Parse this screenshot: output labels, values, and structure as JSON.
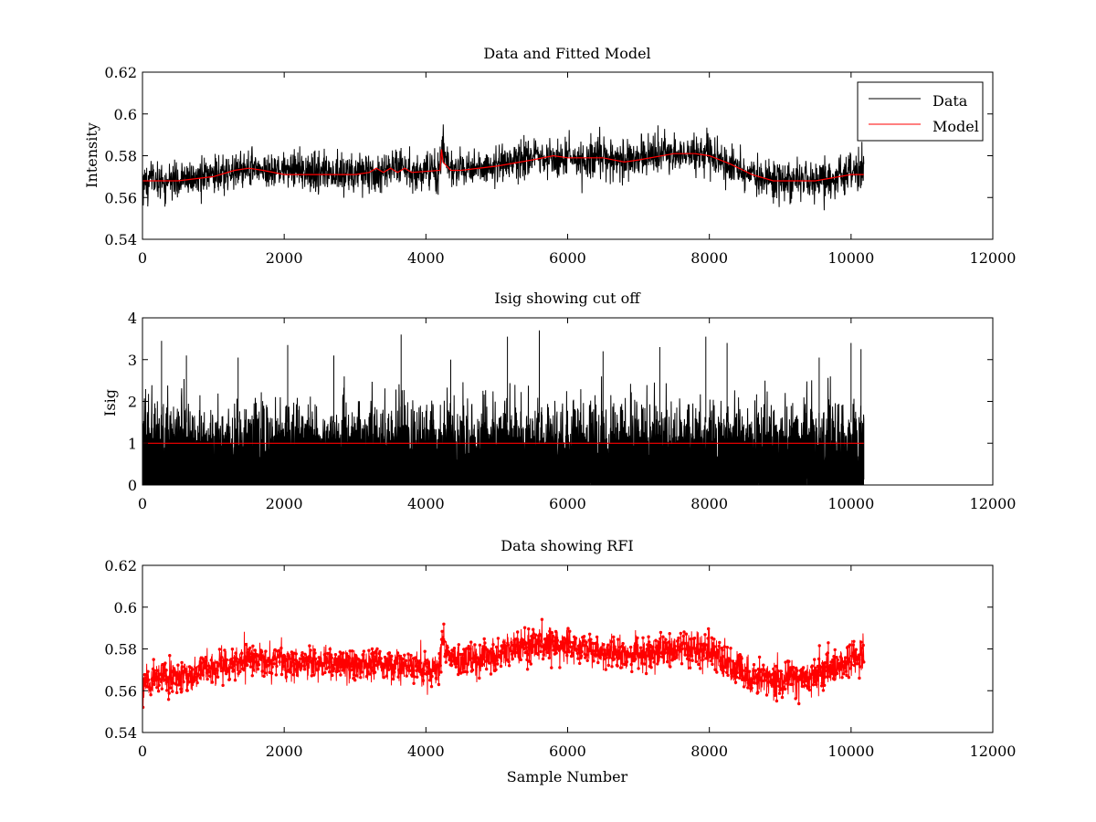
{
  "chart_data": [
    {
      "type": "line",
      "title": "Data and Fitted Model",
      "xlabel": "",
      "ylabel": "Intensity",
      "xlim": [
        0,
        12000
      ],
      "ylim": [
        0.54,
        0.62
      ],
      "xticks": [
        0,
        2000,
        4000,
        6000,
        8000,
        10000,
        12000
      ],
      "yticks": [
        0.54,
        0.56,
        0.58,
        0.6,
        0.62
      ],
      "xtick_labels": [
        "0",
        "2000",
        "4000",
        "6000",
        "8000",
        "10000",
        "12000"
      ],
      "ytick_labels": [
        "0.54",
        "0.56",
        "0.58",
        "0.6",
        "0.62"
      ],
      "legend": {
        "position": "top-right",
        "entries": [
          "Data",
          "Model"
        ]
      },
      "series": [
        {
          "name": "Data",
          "color": "#000000",
          "style": "noisy-line",
          "x": [
            0,
            500,
            1000,
            1500,
            2000,
            2500,
            3000,
            3500,
            3900,
            4200,
            4230,
            4300,
            4500,
            5000,
            5500,
            6000,
            6500,
            7000,
            7500,
            8000,
            8500,
            9000,
            9500,
            10000,
            10180
          ],
          "baseline": [
            0.568,
            0.568,
            0.57,
            0.574,
            0.573,
            0.572,
            0.572,
            0.573,
            0.572,
            0.573,
            0.586,
            0.575,
            0.573,
            0.575,
            0.58,
            0.579,
            0.579,
            0.578,
            0.582,
            0.581,
            0.571,
            0.568,
            0.568,
            0.571,
            0.572
          ],
          "noise_sd": 0.0045
        },
        {
          "name": "Model",
          "color": "#ff0000",
          "x": [
            0,
            500,
            1000,
            1300,
            1500,
            1700,
            2000,
            2500,
            3000,
            3200,
            3300,
            3400,
            3500,
            3600,
            3700,
            3800,
            4200,
            4220,
            4240,
            4350,
            4500,
            5000,
            5500,
            5800,
            6000,
            6500,
            6800,
            7000,
            7500,
            7800,
            8000,
            8300,
            8600,
            8900,
            9500,
            10000,
            10180
          ],
          "y": [
            0.568,
            0.568,
            0.57,
            0.573,
            0.574,
            0.573,
            0.571,
            0.571,
            0.571,
            0.572,
            0.574,
            0.572,
            0.574,
            0.572,
            0.574,
            0.572,
            0.573,
            0.583,
            0.577,
            0.573,
            0.573,
            0.575,
            0.578,
            0.58,
            0.579,
            0.579,
            0.577,
            0.578,
            0.581,
            0.581,
            0.58,
            0.576,
            0.571,
            0.568,
            0.568,
            0.571,
            0.571
          ]
        }
      ]
    },
    {
      "type": "line",
      "title": "Isig showing cut off",
      "xlabel": "",
      "ylabel": "Isig",
      "xlim": [
        0,
        12000
      ],
      "ylim": [
        0,
        4
      ],
      "xticks": [
        0,
        2000,
        4000,
        6000,
        8000,
        10000,
        12000
      ],
      "yticks": [
        0,
        1,
        2,
        3,
        4
      ],
      "xtick_labels": [
        "0",
        "2000",
        "4000",
        "6000",
        "8000",
        "10000",
        "12000"
      ],
      "ytick_labels": [
        "0",
        "1",
        "2",
        "3",
        "4"
      ],
      "series": [
        {
          "name": "Isig",
          "color": "#000000",
          "style": "noisy-spikes",
          "x_range": [
            0,
            10180
          ],
          "band_low": 0,
          "band_high": 1.6,
          "peaks": [
            {
              "x": 270,
              "y": 3.45
            },
            {
              "x": 620,
              "y": 3.1
            },
            {
              "x": 1350,
              "y": 3.05
            },
            {
              "x": 2050,
              "y": 3.35
            },
            {
              "x": 2700,
              "y": 3.1
            },
            {
              "x": 3650,
              "y": 3.6
            },
            {
              "x": 4350,
              "y": 3.0
            },
            {
              "x": 5150,
              "y": 3.55
            },
            {
              "x": 5600,
              "y": 3.7
            },
            {
              "x": 6500,
              "y": 3.2
            },
            {
              "x": 7300,
              "y": 3.3
            },
            {
              "x": 7950,
              "y": 3.55
            },
            {
              "x": 8250,
              "y": 3.4
            },
            {
              "x": 9550,
              "y": 3.05
            },
            {
              "x": 10000,
              "y": 3.4
            },
            {
              "x": 10140,
              "y": 3.25
            }
          ]
        },
        {
          "name": "Cut off",
          "color": "#ff0000",
          "x": [
            0,
            10180
          ],
          "y": [
            1,
            1
          ]
        }
      ]
    },
    {
      "type": "scatter",
      "title": "Data showing RFI",
      "xlabel": "Sample Number",
      "ylabel": "",
      "xlim": [
        0,
        12000
      ],
      "ylim": [
        0.54,
        0.62
      ],
      "xticks": [
        0,
        2000,
        4000,
        6000,
        8000,
        10000,
        12000
      ],
      "yticks": [
        0.54,
        0.56,
        0.58,
        0.6,
        0.62
      ],
      "xtick_labels": [
        "0",
        "2000",
        "4000",
        "6000",
        "8000",
        "10000",
        "12000"
      ],
      "ytick_labels": [
        "0.54",
        "0.56",
        "0.58",
        "0.6",
        "0.62"
      ],
      "series": [
        {
          "name": "Data",
          "color": "#ff0000",
          "style": "noisy-markers",
          "x": [
            0,
            500,
            1000,
            1500,
            2000,
            2500,
            3000,
            3500,
            3900,
            4200,
            4230,
            4300,
            4500,
            5000,
            5500,
            6000,
            6500,
            7000,
            7500,
            8000,
            8500,
            9000,
            9500,
            10000,
            10180
          ],
          "baseline": [
            0.566,
            0.566,
            0.57,
            0.575,
            0.574,
            0.573,
            0.573,
            0.572,
            0.571,
            0.571,
            0.586,
            0.576,
            0.574,
            0.577,
            0.583,
            0.581,
            0.579,
            0.577,
            0.58,
            0.579,
            0.568,
            0.565,
            0.567,
            0.575,
            0.578
          ],
          "noise_sd": 0.004
        }
      ]
    }
  ]
}
